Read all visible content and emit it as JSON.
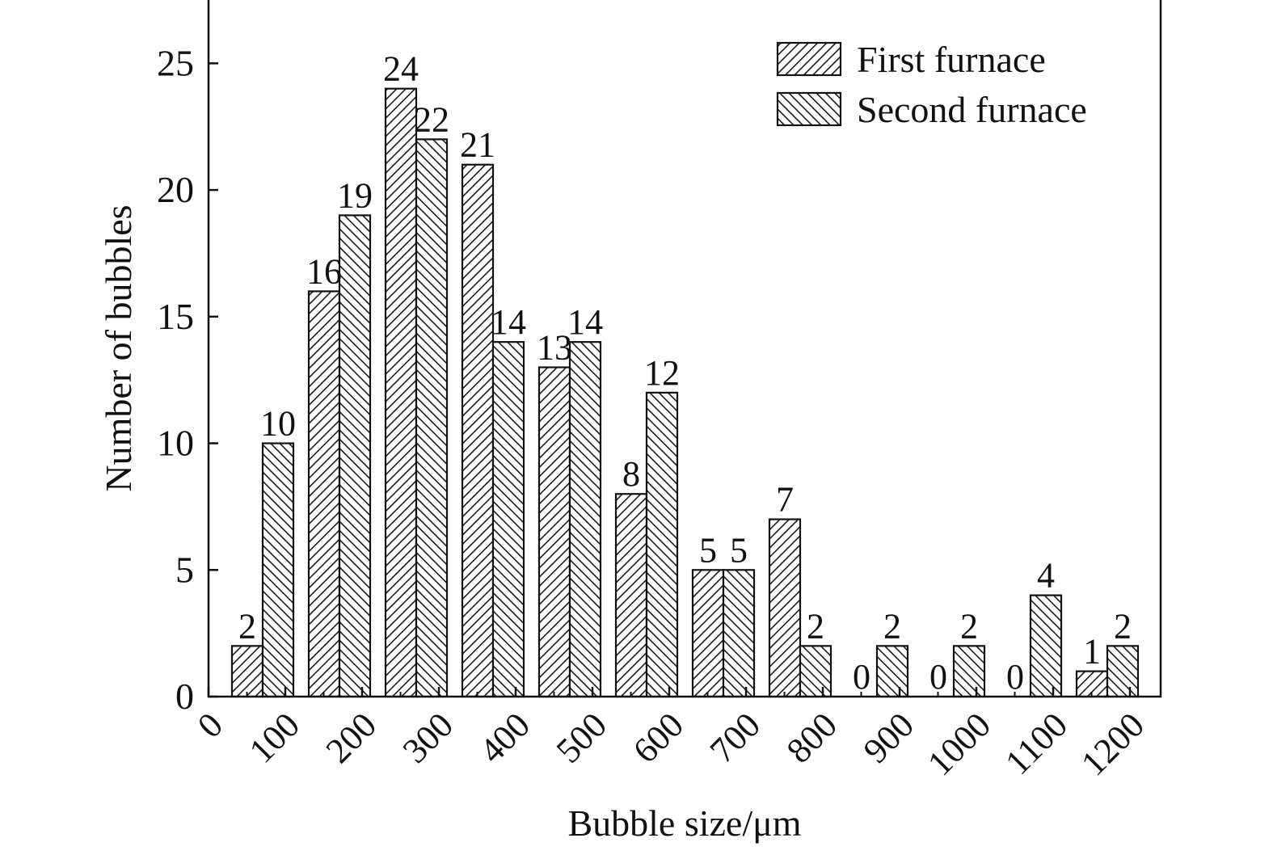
{
  "chart_data": {
    "type": "bar",
    "xlabel": "Bubble size/μm",
    "ylabel": "Number of bubbles",
    "x_ticks": [
      "0",
      "100",
      "200",
      "300",
      "400",
      "500",
      "600",
      "700",
      "800",
      "900",
      "1000",
      "1100",
      "1200"
    ],
    "bins": [
      [
        0,
        100
      ],
      [
        100,
        200
      ],
      [
        200,
        300
      ],
      [
        300,
        400
      ],
      [
        400,
        500
      ],
      [
        500,
        600
      ],
      [
        600,
        700
      ],
      [
        700,
        800
      ],
      [
        800,
        900
      ],
      [
        900,
        1000
      ],
      [
        1000,
        1100
      ],
      [
        1100,
        1200
      ]
    ],
    "series": [
      {
        "name": "First furnace",
        "hatch": "forward",
        "values": [
          2,
          16,
          24,
          21,
          13,
          8,
          5,
          7,
          0,
          0,
          0,
          1
        ]
      },
      {
        "name": "Second furnace",
        "hatch": "backward",
        "values": [
          10,
          19,
          22,
          14,
          14,
          12,
          5,
          2,
          2,
          2,
          4,
          2
        ]
      }
    ],
    "data_labels": [
      {
        "series": 0,
        "bin": 0,
        "label": "2"
      },
      {
        "series": 1,
        "bin": 0,
        "label": "10"
      },
      {
        "series": 0,
        "bin": 1,
        "label": "16"
      },
      {
        "series": 1,
        "bin": 1,
        "label": "19"
      },
      {
        "series": 0,
        "bin": 2,
        "label": "24"
      },
      {
        "series": 1,
        "bin": 2,
        "label": "22"
      },
      {
        "series": 0,
        "bin": 3,
        "label": "21"
      },
      {
        "series": 1,
        "bin": 3,
        "label": "14"
      },
      {
        "series": 0,
        "bin": 4,
        "label": "13"
      },
      {
        "series": 1,
        "bin": 4,
        "label": "14"
      },
      {
        "series": 0,
        "bin": 5,
        "label": "8"
      },
      {
        "series": 1,
        "bin": 5,
        "label": "12"
      },
      {
        "series": 0,
        "bin": 6,
        "label": "5"
      },
      {
        "series": 1,
        "bin": 6,
        "label": "5"
      },
      {
        "series": 0,
        "bin": 7,
        "label": "7"
      },
      {
        "series": 1,
        "bin": 7,
        "label": "2"
      },
      {
        "series": 0,
        "bin": 8,
        "label": "0"
      },
      {
        "series": 1,
        "bin": 8,
        "label": "2"
      },
      {
        "series": 0,
        "bin": 9,
        "label": "0"
      },
      {
        "series": 1,
        "bin": 9,
        "label": "2"
      },
      {
        "series": 0,
        "bin": 10,
        "label": "0"
      },
      {
        "series": 1,
        "bin": 10,
        "label": "4"
      },
      {
        "series": 0,
        "bin": 11,
        "label": "1"
      },
      {
        "series": 1,
        "bin": 11,
        "label": "2"
      }
    ],
    "ylim": [
      0,
      27.5
    ],
    "xlim": [
      0,
      1240
    ],
    "y_ticks": [
      0,
      5,
      10,
      15,
      20,
      25
    ],
    "grid": false,
    "legend_position": "top-right",
    "colors": {
      "bar_fill": "#ffffff",
      "hatch": "#1a1a1a",
      "axis": "#111111"
    }
  }
}
